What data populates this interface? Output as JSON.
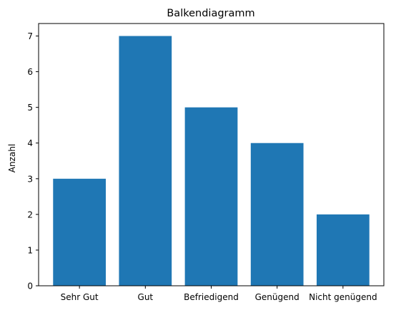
{
  "chart_data": {
    "type": "bar",
    "title": "Balkendiagramm",
    "xlabel": "",
    "ylabel": "Anzahl",
    "categories": [
      "Sehr Gut",
      "Gut",
      "Befriedigend",
      "Genügend",
      "Nicht genügend"
    ],
    "values": [
      3,
      7,
      5,
      4,
      2
    ],
    "ylim": [
      0,
      7.35
    ],
    "yticks": [
      0,
      1,
      2,
      3,
      4,
      5,
      6,
      7
    ],
    "bar_color": "#1f77b4",
    "grid": false,
    "legend": "none"
  }
}
